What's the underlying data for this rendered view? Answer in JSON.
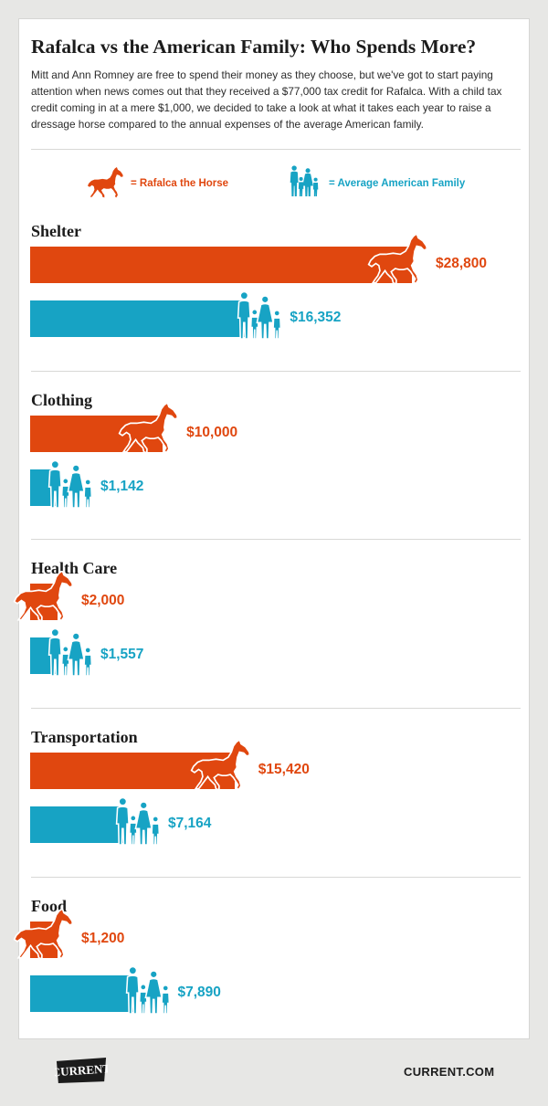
{
  "title": "Rafalca vs the American Family: Who Spends More?",
  "intro": "Mitt and Ann Romney are free to spend their money as they choose, but we've got to start paying attention when news comes out that they received a $77,000 tax credit for Rafalca. With a child tax credit coming in at a mere $1,000, we decided to take a look at what it takes each year to raise a dressage horse compared to the annual expenses of the average American family.",
  "legend": {
    "horse_label": "= Rafalca the Horse",
    "family_label": "= Average American Family",
    "horse_icon": "horse-icon",
    "family_icon": "family-icon"
  },
  "colors": {
    "horse": "#e0470f",
    "family": "#17a3c4"
  },
  "chart_data": {
    "type": "bar",
    "orientation": "horizontal",
    "series": [
      {
        "name": "Rafalca the Horse",
        "values": [
          28800,
          10000,
          2000,
          15420,
          1200
        ]
      },
      {
        "name": "Average American Family",
        "values": [
          16352,
          1142,
          1557,
          7164,
          7890
        ]
      }
    ],
    "categories": [
      "Shelter",
      "Clothing",
      "Health Care",
      "Transportation",
      "Food"
    ],
    "horse_labels": [
      "$28,800",
      "$10,000",
      "$2,000",
      "$15,420",
      "$1,200"
    ],
    "family_labels": [
      "$16,352",
      "$1,142",
      "$1,557",
      "$7,164",
      "$7,890"
    ],
    "legend_position": "top",
    "grid": false
  },
  "footer": {
    "logo_text": "CURRENT",
    "url": "CURRENT.COM"
  }
}
